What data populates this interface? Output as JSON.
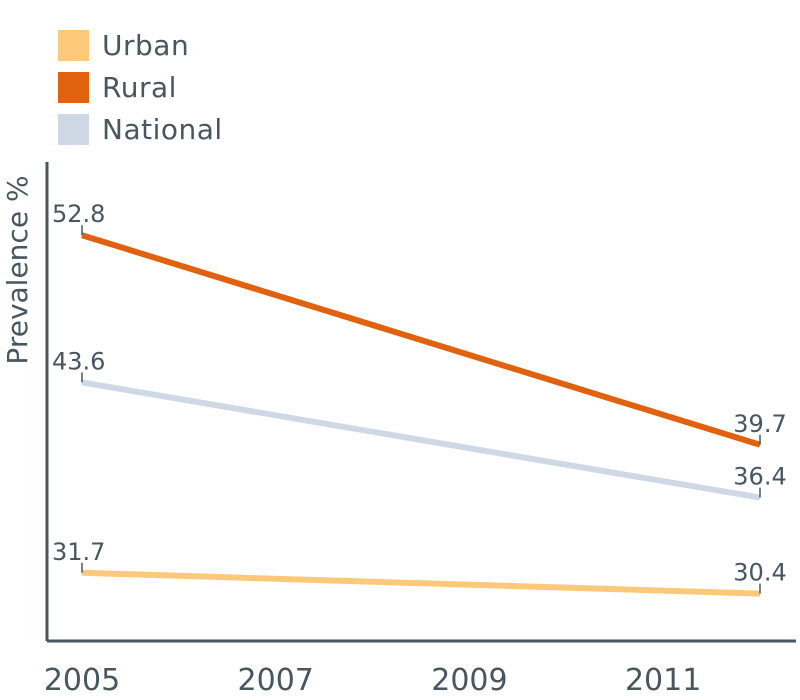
{
  "chart_data": {
    "type": "line",
    "xlabel": "",
    "ylabel": "Prevalence %",
    "x_ticks": [
      "2005",
      "2007",
      "2009",
      "2011"
    ],
    "xlim": [
      2005,
      2012
    ],
    "ylim": [
      25,
      60
    ],
    "grid": false,
    "legend_position": "top-left",
    "series": [
      {
        "name": "Urban",
        "color": "#fcc87a",
        "points": [
          {
            "x": 2005,
            "y": 31.7,
            "label": "31.7"
          },
          {
            "x": 2012,
            "y": 30.4,
            "label": "30.4"
          }
        ]
      },
      {
        "name": "Rural",
        "color": "#e0610e",
        "points": [
          {
            "x": 2005,
            "y": 52.8,
            "label": "52.8"
          },
          {
            "x": 2012,
            "y": 39.7,
            "label": "39.7"
          }
        ]
      },
      {
        "name": "National",
        "color": "#cfd9e5",
        "points": [
          {
            "x": 2005,
            "y": 43.6,
            "label": "43.6"
          },
          {
            "x": 2012,
            "y": 36.4,
            "label": "36.4"
          }
        ]
      }
    ]
  }
}
